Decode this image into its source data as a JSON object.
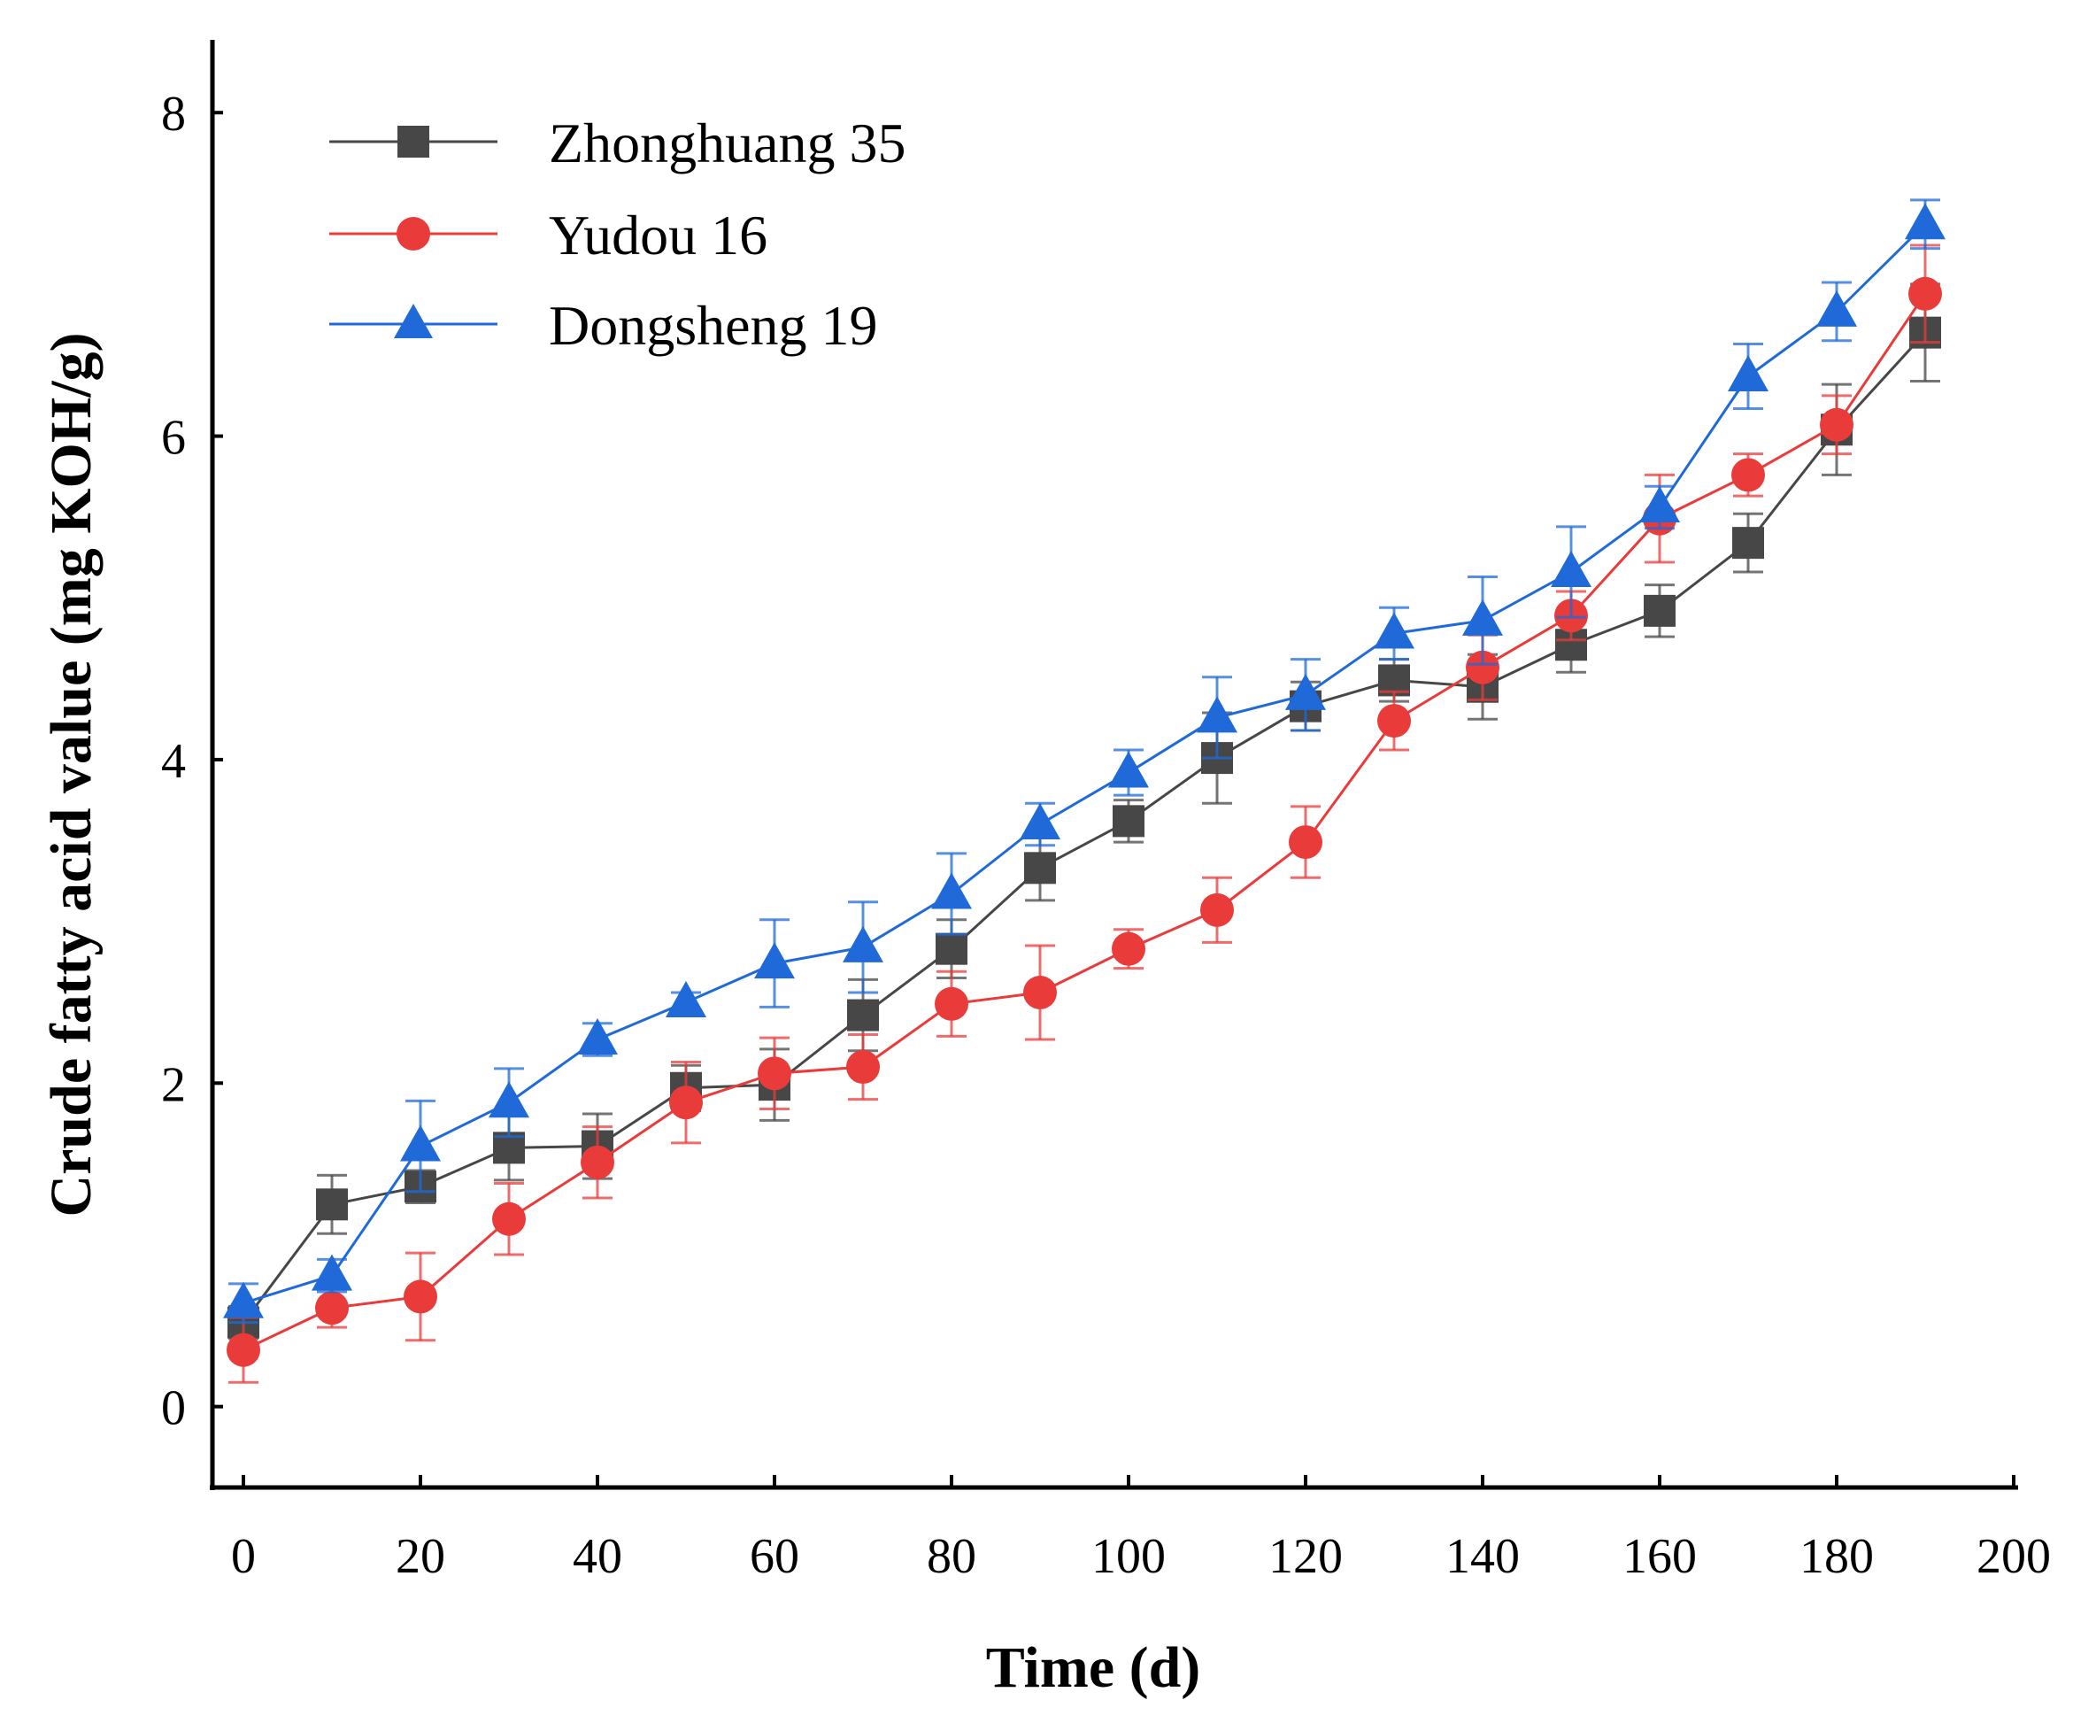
{
  "colors": {
    "axis": "#000000",
    "zhonghuang": "#474747",
    "yudou": "#ea3b3b",
    "dongsheng": "#1f6ad8",
    "background": "#ffffff"
  },
  "chart_data": {
    "type": "line",
    "title": "",
    "xlabel": "Time (d)",
    "ylabel": "Crude fatty acid value (mg KOH/g)",
    "xlim": [
      -3.5,
      200.5
    ],
    "ylim": [
      -0.5,
      8.45
    ],
    "xticks": [
      0,
      20,
      40,
      60,
      80,
      100,
      120,
      140,
      160,
      180,
      200
    ],
    "yticks": [
      0,
      2,
      4,
      6,
      8
    ],
    "legend_position": "top-left",
    "x": [
      0,
      10,
      20,
      30,
      40,
      50,
      60,
      70,
      80,
      90,
      100,
      110,
      120,
      130,
      140,
      150,
      160,
      170,
      180,
      190
    ],
    "series": [
      {
        "name": "Zhonghuang 35",
        "marker": "square",
        "color_key": "zhonghuang",
        "values": [
          0.52,
          1.25,
          1.36,
          1.6,
          1.61,
          1.97,
          1.99,
          2.42,
          2.83,
          3.33,
          3.62,
          4.01,
          4.33,
          4.49,
          4.45,
          4.71,
          4.92,
          5.34,
          6.04,
          6.64
        ],
        "errors": [
          0.1,
          0.18,
          0.1,
          0.2,
          0.2,
          0.14,
          0.22,
          0.22,
          0.18,
          0.2,
          0.13,
          0.28,
          0.15,
          0.13,
          0.2,
          0.17,
          0.16,
          0.18,
          0.28,
          0.3
        ]
      },
      {
        "name": "Yudou 16",
        "marker": "circle",
        "color_key": "yudou",
        "values": [
          0.35,
          0.61,
          0.68,
          1.16,
          1.51,
          1.88,
          2.06,
          2.1,
          2.49,
          2.56,
          2.83,
          3.07,
          3.49,
          4.24,
          4.57,
          4.89,
          5.49,
          5.76,
          6.07,
          6.88
        ],
        "errors": [
          0.2,
          0.12,
          0.27,
          0.22,
          0.22,
          0.25,
          0.22,
          0.2,
          0.2,
          0.29,
          0.12,
          0.2,
          0.22,
          0.18,
          0.2,
          0.15,
          0.27,
          0.13,
          0.18,
          0.3
        ]
      },
      {
        "name": "Dongsheng 19",
        "marker": "triangle",
        "color_key": "dongsheng",
        "values": [
          0.64,
          0.81,
          1.61,
          1.88,
          2.27,
          2.5,
          2.74,
          2.84,
          3.17,
          3.6,
          3.92,
          4.26,
          4.4,
          4.78,
          4.86,
          5.16,
          5.56,
          6.37,
          6.77,
          7.31
        ],
        "errors": [
          0.12,
          0.1,
          0.28,
          0.21,
          0.1,
          0.06,
          0.27,
          0.28,
          0.25,
          0.13,
          0.14,
          0.25,
          0.22,
          0.16,
          0.27,
          0.28,
          0.13,
          0.2,
          0.18,
          0.15
        ]
      }
    ]
  }
}
